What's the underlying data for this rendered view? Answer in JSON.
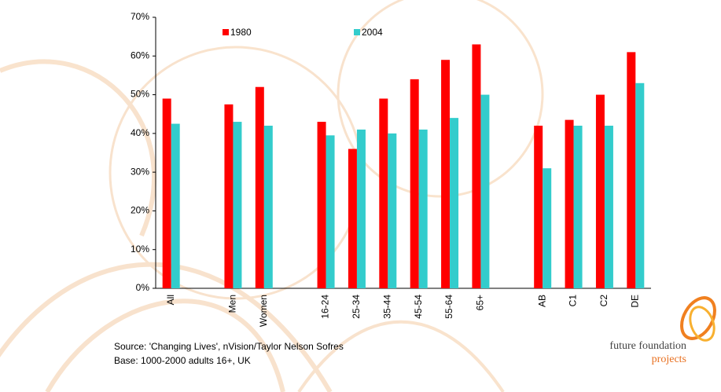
{
  "chart_data": {
    "type": "bar",
    "categories": [
      "All",
      null,
      "Men",
      "Women",
      null,
      "16-24",
      "25-34",
      "35-44",
      "45-54",
      "55-64",
      "65+",
      null,
      "AB",
      "C1",
      "C2",
      "DE"
    ],
    "series": [
      {
        "name": "1980",
        "color": "#ff0000",
        "values": [
          49,
          null,
          47.5,
          52,
          null,
          43,
          36,
          49,
          54,
          59,
          63,
          null,
          42,
          43.5,
          50,
          61
        ]
      },
      {
        "name": "2004",
        "color": "#33cccc",
        "values": [
          42.5,
          null,
          43,
          42,
          null,
          39.5,
          41,
          40,
          41,
          44,
          50,
          null,
          31,
          42,
          42,
          53
        ]
      }
    ],
    "ylim": [
      0,
      70
    ],
    "yticks": [
      {
        "value": 0,
        "label": "0%"
      },
      {
        "value": 10,
        "label": "10%"
      },
      {
        "value": 20,
        "label": "20%"
      },
      {
        "value": 30,
        "label": "30%"
      },
      {
        "value": 40,
        "label": "40%"
      },
      {
        "value": 50,
        "label": "50%"
      },
      {
        "value": 60,
        "label": "60%"
      },
      {
        "value": 70,
        "label": "70%"
      }
    ],
    "notes": [
      "Source: 'Changing Lives', nVision/Taylor Nelson Sofres",
      "Base: 1000-2000 adults 16+, UK"
    ],
    "logo": {
      "name": "future foundation",
      "sub": "projects"
    }
  }
}
